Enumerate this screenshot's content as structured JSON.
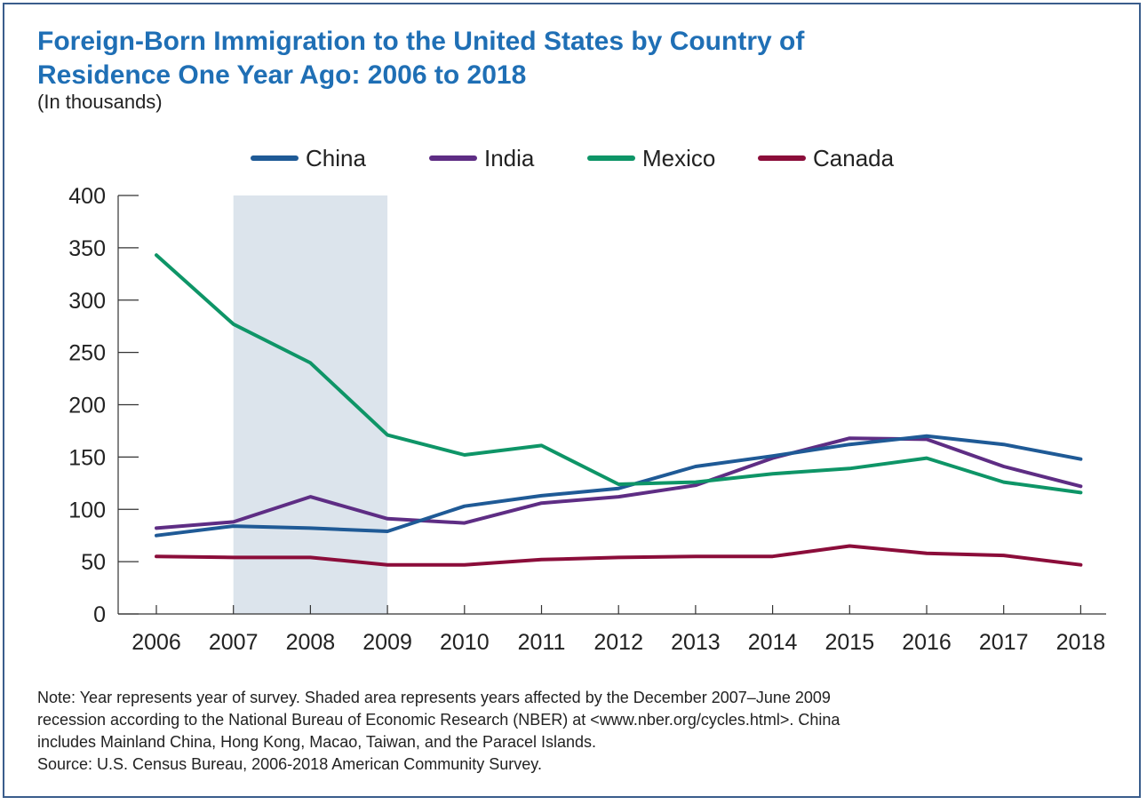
{
  "title_line1": "Foreign-Born Immigration to the United States by Country of",
  "title_line2": "Residence One Year Ago: 2006 to 2018",
  "subtitle": "(In thousands)",
  "note_lines": [
    "Note: Year represents year of survey. Shaded area represents years affected by the December 2007–June 2009",
    "recession according to the National Bureau of Economic Research (NBER) at <www.nber.org/cycles.html>. China",
    "includes Mainland China, Hong Kong, Macao, Taiwan, and the Paracel Islands.",
    "Source: U.S. Census Bureau, 2006-2018 American Community Survey."
  ],
  "chart_data": {
    "type": "line",
    "x": [
      "2006",
      "2007",
      "2008",
      "2009",
      "2010",
      "2011",
      "2012",
      "2013",
      "2014",
      "2015",
      "2016",
      "2017",
      "2018"
    ],
    "ylim": [
      0,
      400
    ],
    "yticks": [
      "0",
      "50",
      "100",
      "150",
      "200",
      "250",
      "300",
      "350",
      "400"
    ],
    "grid": false,
    "legend_position": "top",
    "shaded_region": {
      "from": "2007",
      "to": "2009",
      "color": "#dce4ec"
    },
    "series": [
      {
        "name": "China",
        "color": "#1f5a96",
        "values": [
          75,
          84,
          82,
          79,
          103,
          113,
          120,
          141,
          151,
          162,
          170,
          162,
          148
        ]
      },
      {
        "name": "India",
        "color": "#5e2d84",
        "values": [
          82,
          88,
          112,
          91,
          87,
          106,
          112,
          123,
          149,
          168,
          167,
          141,
          122
        ]
      },
      {
        "name": "Mexico",
        "color": "#0e9567",
        "values": [
          343,
          277,
          240,
          171,
          152,
          161,
          124,
          126,
          134,
          139,
          149,
          126,
          116
        ]
      },
      {
        "name": "Canada",
        "color": "#8b0d3a",
        "values": [
          55,
          54,
          54,
          47,
          47,
          52,
          54,
          55,
          55,
          65,
          58,
          56,
          47
        ]
      }
    ]
  }
}
